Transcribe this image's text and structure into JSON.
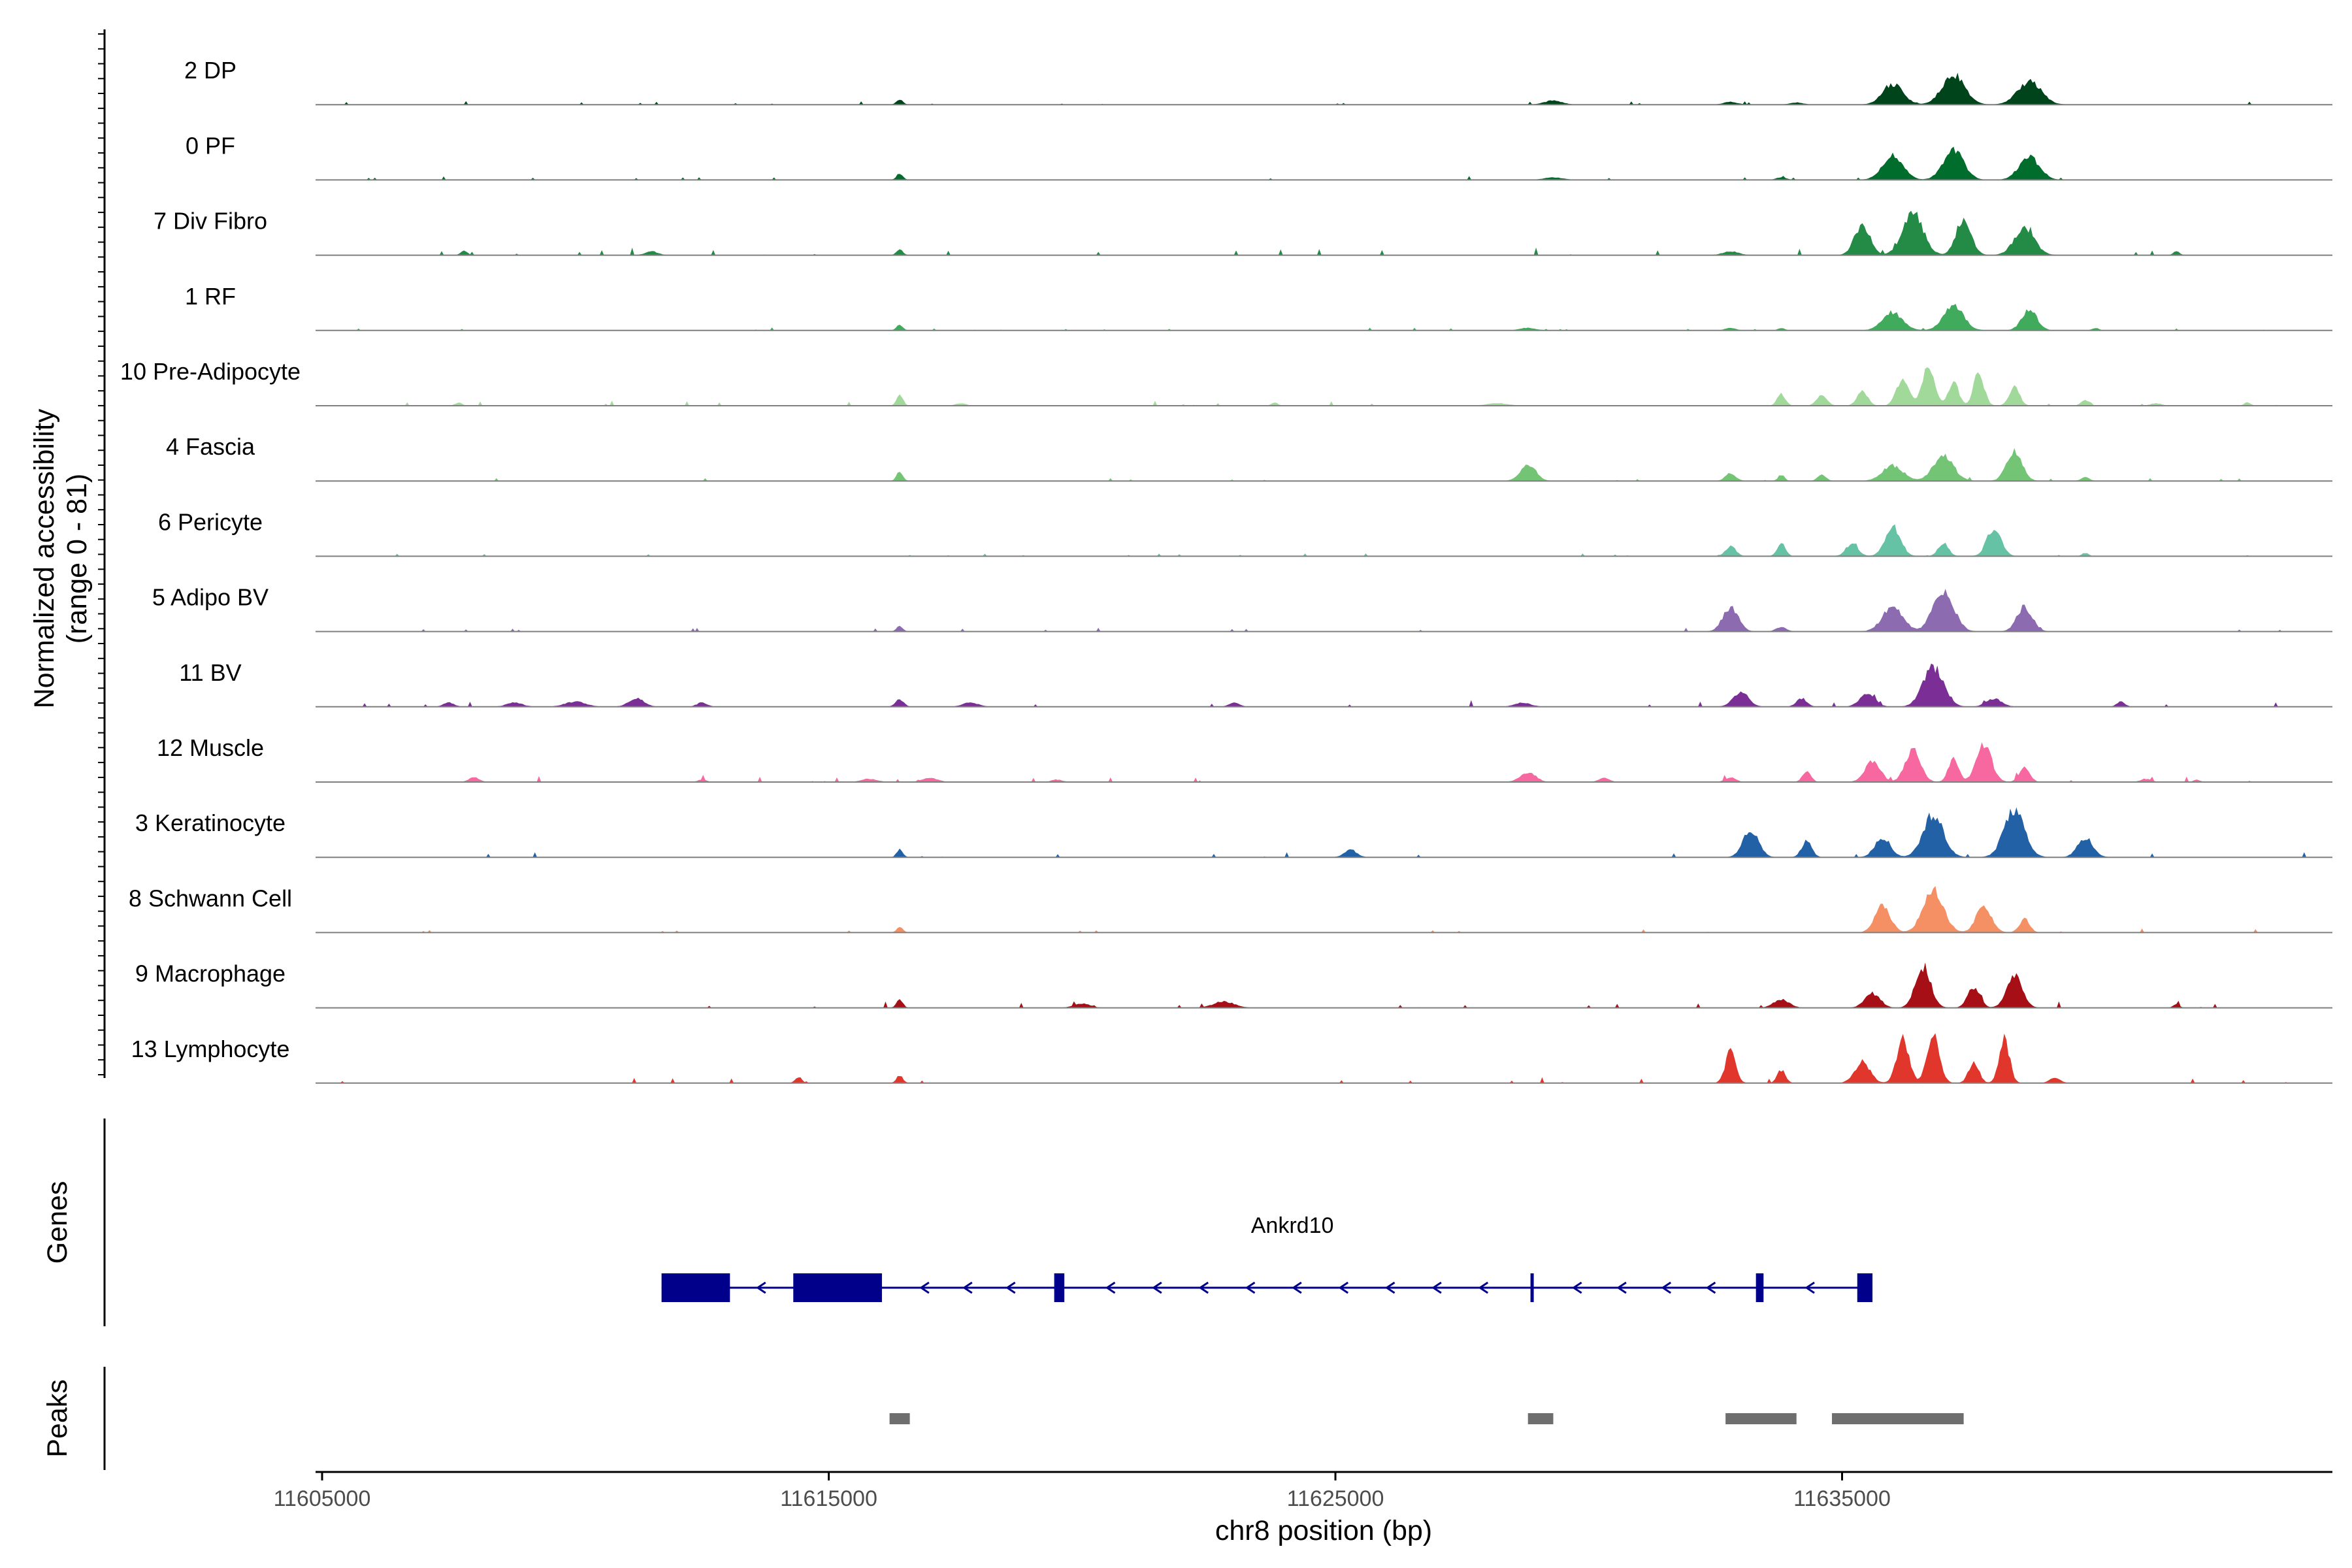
{
  "chart_data": {
    "type": "area",
    "title": "",
    "chromosome": "chr8",
    "xlabel": "chr8 position (bp)",
    "ylabel": "Normalized accessibility",
    "ylabel_range": "(range 0 - 81)",
    "xlim": [
      11605000,
      11645000
    ],
    "x_ticks": [
      11605000,
      11615000,
      11625000,
      11635000
    ],
    "x_tick_labels": [
      "11605000",
      "11615000",
      "11625000",
      "11635000"
    ],
    "ylim": [
      0,
      81
    ],
    "tracks": [
      {
        "name": "2 DP",
        "color": "#00441b",
        "scale": 0.6,
        "noise": 0.1,
        "peaks": [
          [
            11616400,
            0.15,
            60
          ],
          [
            11629300,
            0.12,
            170
          ],
          [
            11632800,
            0.08,
            130
          ],
          [
            11634100,
            0.06,
            120
          ],
          [
            11636000,
            0.62,
            200
          ],
          [
            11637200,
            0.9,
            220
          ],
          [
            11638700,
            0.7,
            230
          ]
        ]
      },
      {
        "name": "0 PF",
        "color": "#006d2c",
        "scale": 0.6,
        "noise": 0.1,
        "peaks": [
          [
            11616400,
            0.2,
            60
          ],
          [
            11629300,
            0.07,
            180
          ],
          [
            11633800,
            0.07,
            100
          ],
          [
            11636000,
            0.75,
            200
          ],
          [
            11637200,
            0.9,
            200
          ],
          [
            11638700,
            0.68,
            200
          ]
        ]
      },
      {
        "name": "7 Div Fibro",
        "color": "#238b45",
        "scale": 0.85,
        "noise": 0.14,
        "peaks": [
          [
            11607800,
            0.1,
            60
          ],
          [
            11611500,
            0.08,
            120
          ],
          [
            11616400,
            0.12,
            60
          ],
          [
            11632800,
            0.08,
            150
          ],
          [
            11635400,
            0.65,
            150
          ],
          [
            11636400,
            0.9,
            200
          ],
          [
            11637400,
            0.7,
            150
          ],
          [
            11638600,
            0.55,
            200
          ],
          [
            11641600,
            0.08,
            60
          ]
        ]
      },
      {
        "name": "1 RF",
        "color": "#41ab5d",
        "scale": 0.45,
        "noise": 0.1,
        "peaks": [
          [
            11616400,
            0.22,
            60
          ],
          [
            11628800,
            0.1,
            150
          ],
          [
            11632800,
            0.1,
            100
          ],
          [
            11633800,
            0.1,
            60
          ],
          [
            11636000,
            0.7,
            200
          ],
          [
            11637200,
            0.95,
            200
          ],
          [
            11638700,
            0.8,
            150
          ],
          [
            11640000,
            0.1,
            60
          ]
        ]
      },
      {
        "name": "10 Pre-Adipocyte",
        "color": "#a1d99b",
        "scale": 0.7,
        "noise": 0.14,
        "peaks": [
          [
            11607700,
            0.08,
            60
          ],
          [
            11616400,
            0.3,
            60
          ],
          [
            11617600,
            0.06,
            100
          ],
          [
            11623800,
            0.08,
            60
          ],
          [
            11628200,
            0.06,
            200
          ],
          [
            11633800,
            0.3,
            80
          ],
          [
            11634600,
            0.25,
            100
          ],
          [
            11635400,
            0.4,
            100
          ],
          [
            11636200,
            0.7,
            120
          ],
          [
            11636700,
            0.95,
            120
          ],
          [
            11637200,
            0.6,
            100
          ],
          [
            11637700,
            0.85,
            100
          ],
          [
            11638400,
            0.5,
            100
          ],
          [
            11639800,
            0.15,
            80
          ],
          [
            11641200,
            0.06,
            100
          ],
          [
            11643000,
            0.08,
            60
          ]
        ]
      },
      {
        "name": "4 Fascia",
        "color": "#74c476",
        "scale": 0.55,
        "noise": 0.1,
        "peaks": [
          [
            11616400,
            0.3,
            60
          ],
          [
            11628800,
            0.55,
            150
          ],
          [
            11632800,
            0.25,
            100
          ],
          [
            11633800,
            0.2,
            60
          ],
          [
            11634600,
            0.2,
            80
          ],
          [
            11636000,
            0.5,
            200
          ],
          [
            11637000,
            0.8,
            200
          ],
          [
            11638400,
            0.95,
            150
          ],
          [
            11639800,
            0.12,
            80
          ]
        ]
      },
      {
        "name": "6 Pericyte",
        "color": "#66c2a4",
        "scale": 0.6,
        "noise": 0.08,
        "peaks": [
          [
            11632800,
            0.3,
            100
          ],
          [
            11633800,
            0.4,
            80
          ],
          [
            11635200,
            0.35,
            120
          ],
          [
            11636000,
            0.9,
            150
          ],
          [
            11637000,
            0.4,
            100
          ],
          [
            11638000,
            0.85,
            140
          ],
          [
            11639800,
            0.1,
            60
          ]
        ]
      },
      {
        "name": "5 Adipo BV",
        "color": "#8c6bb1",
        "scale": 0.8,
        "noise": 0.08,
        "peaks": [
          [
            11616400,
            0.12,
            60
          ],
          [
            11632800,
            0.55,
            150
          ],
          [
            11633800,
            0.1,
            100
          ],
          [
            11636000,
            0.55,
            200
          ],
          [
            11637000,
            0.95,
            200
          ],
          [
            11638600,
            0.55,
            150
          ]
        ]
      },
      {
        "name": "11 BV",
        "color": "#7a2e96",
        "scale": 0.75,
        "noise": 0.14,
        "peaks": [
          [
            11607500,
            0.1,
            100
          ],
          [
            11608800,
            0.1,
            150
          ],
          [
            11610000,
            0.12,
            200
          ],
          [
            11611200,
            0.2,
            150
          ],
          [
            11612500,
            0.1,
            100
          ],
          [
            11616400,
            0.18,
            80
          ],
          [
            11617800,
            0.1,
            150
          ],
          [
            11623000,
            0.1,
            100
          ],
          [
            11628700,
            0.1,
            150
          ],
          [
            11633000,
            0.35,
            150
          ],
          [
            11634200,
            0.2,
            100
          ],
          [
            11635500,
            0.3,
            150
          ],
          [
            11636800,
            0.95,
            200
          ],
          [
            11638000,
            0.2,
            150
          ],
          [
            11640500,
            0.12,
            80
          ]
        ]
      },
      {
        "name": "12 Muscle",
        "color": "#f768a1",
        "scale": 0.7,
        "noise": 0.14,
        "peaks": [
          [
            11608000,
            0.12,
            100
          ],
          [
            11612500,
            0.06,
            80
          ],
          [
            11615800,
            0.08,
            150
          ],
          [
            11617000,
            0.1,
            150
          ],
          [
            11619500,
            0.06,
            100
          ],
          [
            11628800,
            0.25,
            150
          ],
          [
            11630300,
            0.1,
            100
          ],
          [
            11632800,
            0.12,
            100
          ],
          [
            11634300,
            0.3,
            80
          ],
          [
            11635600,
            0.55,
            150
          ],
          [
            11636400,
            0.8,
            150
          ],
          [
            11637200,
            0.6,
            100
          ],
          [
            11637800,
            0.95,
            150
          ],
          [
            11638600,
            0.4,
            100
          ],
          [
            11641000,
            0.08,
            100
          ],
          [
            11642000,
            0.06,
            60
          ]
        ]
      },
      {
        "name": "3 Keratinocyte",
        "color": "#2261a6",
        "scale": 0.9,
        "noise": 0.1,
        "peaks": [
          [
            11616400,
            0.15,
            60
          ],
          [
            11625300,
            0.15,
            120
          ],
          [
            11633200,
            0.55,
            150
          ],
          [
            11634300,
            0.3,
            100
          ],
          [
            11635800,
            0.4,
            150
          ],
          [
            11636800,
            0.85,
            200
          ],
          [
            11638400,
            0.95,
            200
          ],
          [
            11639800,
            0.4,
            150
          ]
        ]
      },
      {
        "name": "8 Schwann Cell",
        "color": "#f59064",
        "scale": 0.8,
        "noise": 0.08,
        "peaks": [
          [
            11616400,
            0.12,
            60
          ],
          [
            11635800,
            0.6,
            150
          ],
          [
            11636800,
            0.95,
            200
          ],
          [
            11637800,
            0.6,
            150
          ],
          [
            11638600,
            0.3,
            100
          ]
        ]
      },
      {
        "name": "9 Macrophage",
        "color": "#a50f15",
        "scale": 0.75,
        "noise": 0.14,
        "peaks": [
          [
            11616400,
            0.2,
            60
          ],
          [
            11620000,
            0.1,
            150
          ],
          [
            11622800,
            0.15,
            200
          ],
          [
            11633800,
            0.2,
            150
          ],
          [
            11635600,
            0.35,
            150
          ],
          [
            11636600,
            0.95,
            150
          ],
          [
            11637600,
            0.5,
            120
          ],
          [
            11638400,
            0.8,
            150
          ],
          [
            11641600,
            0.08,
            60
          ]
        ]
      },
      {
        "name": "13 Lymphocyte",
        "color": "#e0362c",
        "scale": 0.95,
        "noise": 0.1,
        "peaks": [
          [
            11614400,
            0.12,
            60
          ],
          [
            11616400,
            0.15,
            60
          ],
          [
            11632800,
            0.6,
            100
          ],
          [
            11633800,
            0.25,
            80
          ],
          [
            11635400,
            0.4,
            150
          ],
          [
            11636200,
            0.85,
            120
          ],
          [
            11636800,
            0.95,
            120
          ],
          [
            11637600,
            0.4,
            100
          ],
          [
            11638200,
            0.85,
            100
          ],
          [
            11639200,
            0.1,
            100
          ]
        ]
      }
    ],
    "gene": {
      "name": "Ankrd10",
      "strand": "-",
      "start": 11611700,
      "end": 11635600,
      "exons": [
        [
          11611700,
          11613050
        ],
        [
          11614300,
          11616050
        ],
        [
          11619450,
          11619650
        ],
        [
          11628850,
          11628900
        ],
        [
          11633300,
          11633450
        ],
        [
          11635300,
          11635600
        ]
      ]
    },
    "peaks_track": [
      [
        11616200,
        11616600
      ],
      [
        11628800,
        11629300
      ],
      [
        11632700,
        11634100
      ],
      [
        11634800,
        11637400
      ]
    ],
    "panel_labels": {
      "genes": "Genes",
      "peaks": "Peaks"
    }
  },
  "colors": {
    "axis": "#000000",
    "baseline": "#7f7f7f",
    "gene": "#00008b",
    "peak_bar": "#6e6e6e"
  }
}
